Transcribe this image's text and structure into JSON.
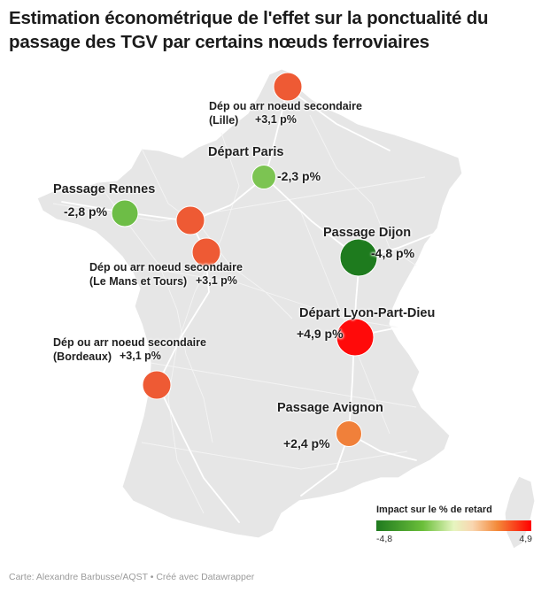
{
  "title": "Estimation économétrique de l'effet sur la ponctualité du passage des TGV par certains nœuds ferroviaires",
  "colors": {
    "land": "#e6e6e6",
    "border": "#ffffff",
    "rail": "#ffffff",
    "strong_green": "#1e7b1e",
    "light_green": "#7cc452",
    "orange_red": "#ee5a34",
    "orange": "#f0803a",
    "red": "#ff0a0a"
  },
  "nodes": [
    {
      "id": "lille",
      "label": "Dép ou arr noeud secondaire (Lille)",
      "value_text": "+3,1 p%",
      "value": 3.1,
      "lat": 50.63,
      "lon": 3.06
    },
    {
      "id": "paris",
      "label": "Départ Paris",
      "value_text": "-2,3 p%",
      "value": -2.3,
      "lat": 48.84,
      "lon": 2.37
    },
    {
      "id": "rennes",
      "label": "Passage Rennes",
      "value_text": "-2,8 p%",
      "value": -2.8,
      "lat": 48.11,
      "lon": -1.68
    },
    {
      "id": "lemans",
      "label": "Dép ou arr noeud secondaire (Le Mans et Tours)",
      "value_text": "+3,1 p%",
      "value": 3.1,
      "lat": 48.0,
      "lon": 0.2
    },
    {
      "id": "tours",
      "label": "",
      "value_text": "",
      "value": 3.1,
      "lat": 47.39,
      "lon": 0.69
    },
    {
      "id": "dijon",
      "label": "Passage Dijon",
      "value_text": "-4,8 p%",
      "value": -4.8,
      "lat": 47.32,
      "lon": 5.04
    },
    {
      "id": "lyon",
      "label": "Départ Lyon-Part-Dieu",
      "value_text": "+4,9 p%",
      "value": 4.9,
      "lat": 45.76,
      "lon": 4.86
    },
    {
      "id": "bordeaux",
      "label": "Dép ou arr noeud secondaire (Bordeaux)",
      "value_text": "+3,1 p%",
      "value": 3.1,
      "lat": 44.83,
      "lon": -0.57
    },
    {
      "id": "avignon",
      "label": "Passage Avignon",
      "value_text": "+2,4 p%",
      "value": 2.4,
      "lat": 43.95,
      "lon": 4.81
    }
  ],
  "legend": {
    "title": "Impact sur le % de retard",
    "min": -4.8,
    "max": 4.9,
    "min_label": "-4,8",
    "max_label": "4,9"
  },
  "footer": "Carte: Alexandre Barbusse/AQST • Créé avec Datawrapper"
}
